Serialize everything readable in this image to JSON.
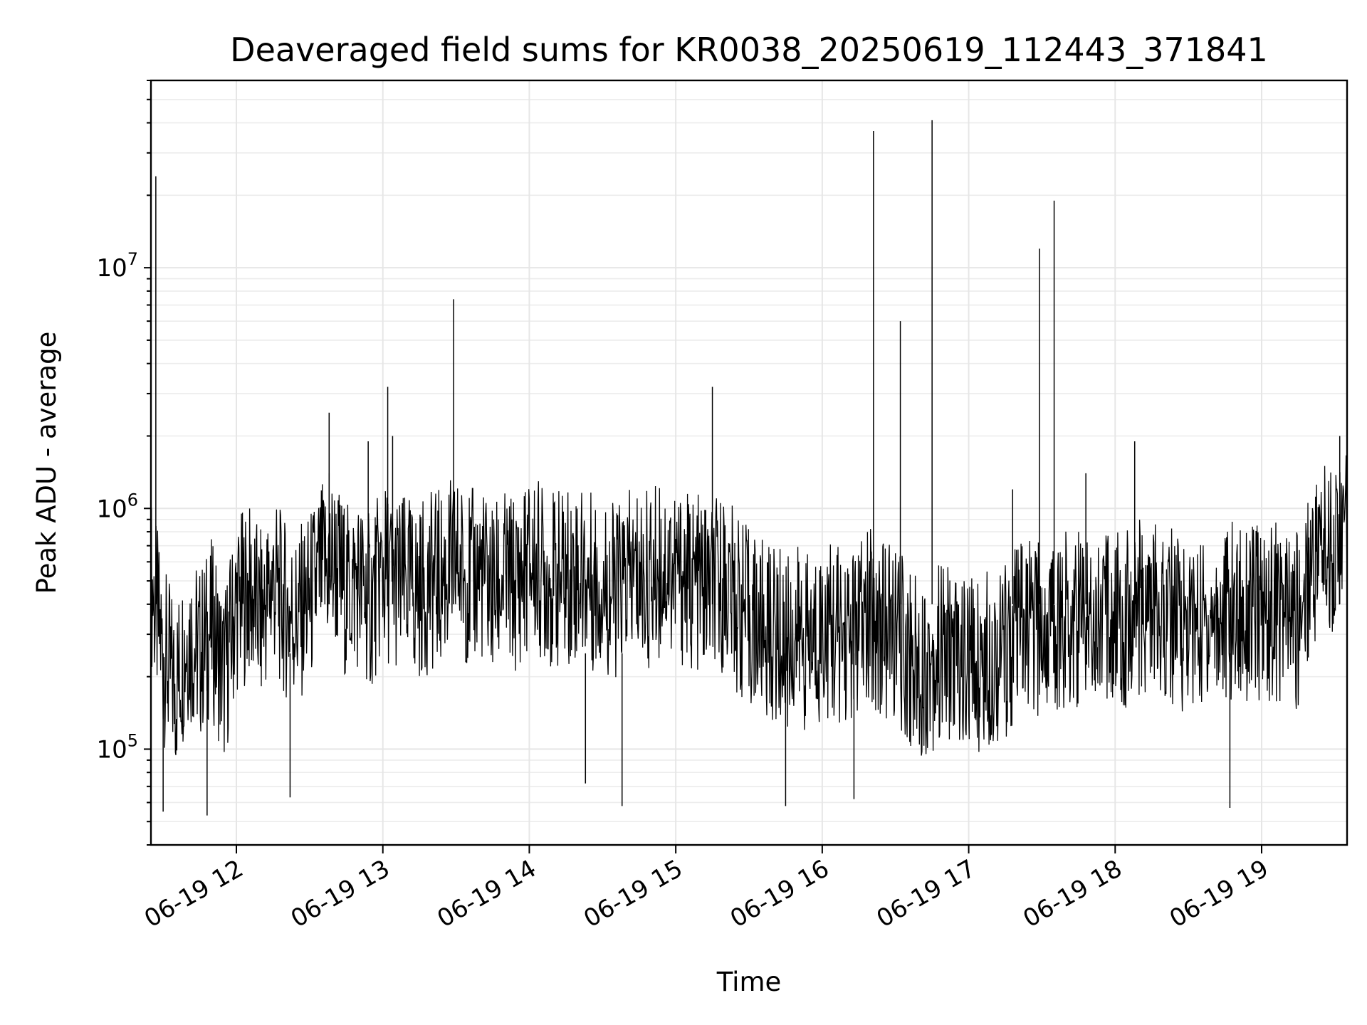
{
  "chart_data": {
    "type": "line",
    "title": "Deaveraged field sums for KR0038_20250619_112443_371841",
    "xlabel": "Time",
    "ylabel": "Peak ADU - average",
    "y_scale": "log",
    "ylim": [
      40000,
      60000000
    ],
    "xlim": [
      "2025-06-19 11:25",
      "2025-06-19 19:35"
    ],
    "x_ticks": [
      "2025-06-19 12:00",
      "2025-06-19 13:00",
      "2025-06-19 14:00",
      "2025-06-19 15:00",
      "2025-06-19 16:00",
      "2025-06-19 17:00",
      "2025-06-19 18:00",
      "2025-06-19 19:00"
    ],
    "x_tick_labels": [
      "06-19 12",
      "06-19 13",
      "06-19 14",
      "06-19 15",
      "06-19 16",
      "06-19 17",
      "06-19 18",
      "06-19 19"
    ],
    "y_ticks": [
      100000,
      1000000,
      10000000
    ],
    "y_tick_labels": [
      {
        "base": "10",
        "exp": "5"
      },
      {
        "base": "10",
        "exp": "6"
      },
      {
        "base": "10",
        "exp": "7"
      }
    ],
    "grid": true,
    "line_color": "#000000",
    "series": [
      {
        "x": [
          "2025-06-19 11:25",
          "2025-06-19 11:30",
          "2025-06-19 11:35",
          "2025-06-19 11:40",
          "2025-06-19 11:45",
          "2025-06-19 11:50",
          "2025-06-19 11:55",
          "2025-06-19 12:00",
          "2025-06-19 12:05",
          "2025-06-19 12:10",
          "2025-06-19 12:15",
          "2025-06-19 12:20",
          "2025-06-19 12:25",
          "2025-06-19 12:30",
          "2025-06-19 12:35",
          "2025-06-19 12:40",
          "2025-06-19 12:45",
          "2025-06-19 12:50",
          "2025-06-19 12:55",
          "2025-06-19 13:00",
          "2025-06-19 13:05",
          "2025-06-19 13:10",
          "2025-06-19 13:15",
          "2025-06-19 13:20",
          "2025-06-19 13:25",
          "2025-06-19 13:30",
          "2025-06-19 13:35",
          "2025-06-19 13:40",
          "2025-06-19 13:45",
          "2025-06-19 13:50",
          "2025-06-19 13:55",
          "2025-06-19 14:00",
          "2025-06-19 14:05",
          "2025-06-19 14:10",
          "2025-06-19 14:15",
          "2025-06-19 14:20",
          "2025-06-19 14:25",
          "2025-06-19 14:30",
          "2025-06-19 14:35",
          "2025-06-19 14:40",
          "2025-06-19 14:45",
          "2025-06-19 14:50",
          "2025-06-19 14:55",
          "2025-06-19 15:00",
          "2025-06-19 15:05",
          "2025-06-19 15:10",
          "2025-06-19 15:15",
          "2025-06-19 15:20",
          "2025-06-19 15:25",
          "2025-06-19 15:30",
          "2025-06-19 15:35",
          "2025-06-19 15:40",
          "2025-06-19 15:45",
          "2025-06-19 15:50",
          "2025-06-19 15:55",
          "2025-06-19 16:00",
          "2025-06-19 16:05",
          "2025-06-19 16:10",
          "2025-06-19 16:15",
          "2025-06-19 16:20",
          "2025-06-19 16:25",
          "2025-06-19 16:30",
          "2025-06-19 16:35",
          "2025-06-19 16:40",
          "2025-06-19 16:45",
          "2025-06-19 16:50",
          "2025-06-19 16:55",
          "2025-06-19 17:00",
          "2025-06-19 17:05",
          "2025-06-19 17:10",
          "2025-06-19 17:15",
          "2025-06-19 17:20",
          "2025-06-19 17:25",
          "2025-06-19 17:30",
          "2025-06-19 17:35",
          "2025-06-19 17:40",
          "2025-06-19 17:45",
          "2025-06-19 17:50",
          "2025-06-19 17:55",
          "2025-06-19 18:00",
          "2025-06-19 18:05",
          "2025-06-19 18:10",
          "2025-06-19 18:15",
          "2025-06-19 18:20",
          "2025-06-19 18:25",
          "2025-06-19 18:30",
          "2025-06-19 18:35",
          "2025-06-19 18:40",
          "2025-06-19 18:45",
          "2025-06-19 18:50",
          "2025-06-19 18:55",
          "2025-06-19 19:00",
          "2025-06-19 19:05",
          "2025-06-19 19:10",
          "2025-06-19 19:15",
          "2025-06-19 19:20",
          "2025-06-19 19:25",
          "2025-06-19 19:30",
          "2025-06-19 19:35"
        ],
        "y": [
          500000,
          250000,
          180000,
          300000,
          250000,
          320000,
          200000,
          400000,
          450000,
          350000,
          500000,
          380000,
          350000,
          420000,
          550000,
          600000,
          450000,
          500000,
          400000,
          550000,
          500000,
          480000,
          450000,
          500000,
          520000,
          600000,
          500000,
          550000,
          450000,
          500000,
          480000,
          600000,
          550000,
          500000,
          520000,
          550000,
          500000,
          480000,
          450000,
          500000,
          520000,
          500000,
          600000,
          550000,
          500000,
          480000,
          450000,
          500000,
          400000,
          350000,
          320000,
          300000,
          280000,
          300000,
          270000,
          320000,
          300000,
          290000,
          310000,
          350000,
          320000,
          300000,
          250000,
          220000,
          230000,
          260000,
          240000,
          220000,
          230000,
          250000,
          260000,
          300000,
          320000,
          300000,
          330000,
          350000,
          350000,
          380000,
          360000,
          350000,
          350000,
          380000,
          370000,
          360000,
          350000,
          330000,
          320000,
          350000,
          360000,
          380000,
          370000,
          360000,
          380000,
          350000,
          340000,
          600000,
          700000,
          700000,
          800000
        ]
      }
    ],
    "spikes": [
      {
        "x": "2025-06-19 11:27",
        "y": 24000000
      },
      {
        "x": "2025-06-19 11:30",
        "y": 55000
      },
      {
        "x": "2025-06-19 11:48",
        "y": 53000
      },
      {
        "x": "2025-06-19 12:38",
        "y": 1400000
      },
      {
        "x": "2025-06-19 12:22",
        "y": 63000
      },
      {
        "x": "2025-06-19 12:38",
        "y": 2500000
      },
      {
        "x": "2025-06-19 12:54",
        "y": 1900000
      },
      {
        "x": "2025-06-19 13:02",
        "y": 3200000
      },
      {
        "x": "2025-06-19 13:04",
        "y": 2000000
      },
      {
        "x": "2025-06-19 13:29",
        "y": 7400000
      },
      {
        "x": "2025-06-19 14:23",
        "y": 72000
      },
      {
        "x": "2025-06-19 14:38",
        "y": 58000
      },
      {
        "x": "2025-06-19 15:15",
        "y": 3200000
      },
      {
        "x": "2025-06-19 15:45",
        "y": 58000
      },
      {
        "x": "2025-06-19 16:13",
        "y": 62000
      },
      {
        "x": "2025-06-19 16:21",
        "y": 37000000
      },
      {
        "x": "2025-06-19 16:32",
        "y": 6000000
      },
      {
        "x": "2025-06-19 16:45",
        "y": 41000000
      },
      {
        "x": "2025-06-19 17:18",
        "y": 1200000
      },
      {
        "x": "2025-06-19 17:29",
        "y": 12000000
      },
      {
        "x": "2025-06-19 17:35",
        "y": 19000000
      },
      {
        "x": "2025-06-19 17:48",
        "y": 1400000
      },
      {
        "x": "2025-06-19 18:08",
        "y": 1900000
      },
      {
        "x": "2025-06-19 18:47",
        "y": 57000
      },
      {
        "x": "2025-06-19 19:32",
        "y": 2000000
      }
    ]
  }
}
